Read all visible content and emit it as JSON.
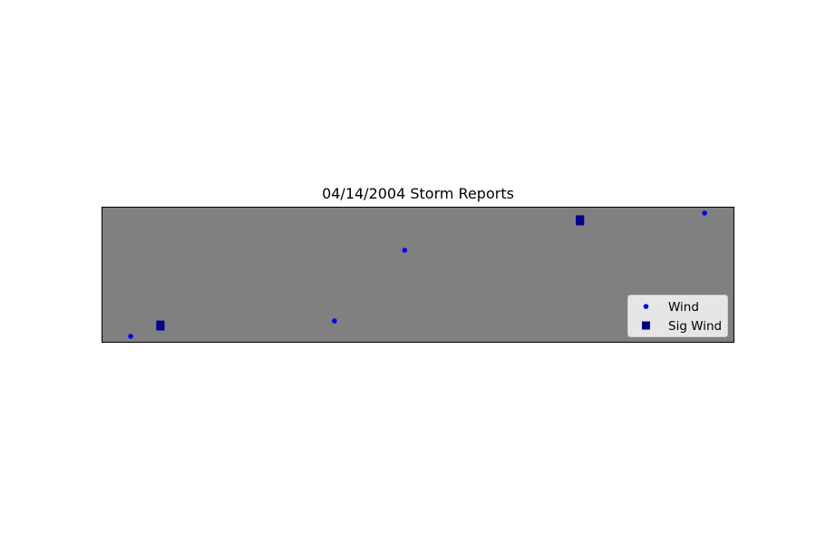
{
  "chart_data": {
    "type": "scatter",
    "title": "04/14/2004 Storm Reports",
    "xlabel": "",
    "ylabel": "",
    "xlim": [
      0,
      100
    ],
    "ylim": [
      0,
      100
    ],
    "grid": false,
    "axes_ticks": false,
    "background_color": "#808080",
    "legend_placement": "lower-right",
    "series": [
      {
        "name": "Wind",
        "marker": "circle",
        "color": "#0000ff",
        "points": [
          {
            "x": 4.6,
            "y": 4.7
          },
          {
            "x": 36.8,
            "y": 16.0
          },
          {
            "x": 47.9,
            "y": 68.0
          },
          {
            "x": 95.3,
            "y": 95.3
          }
        ]
      },
      {
        "name": "Sig Wind",
        "marker": "square",
        "color": "#00008b",
        "points": [
          {
            "x": 9.3,
            "y": 12.0
          },
          {
            "x": 9.3,
            "y": 13.3
          },
          {
            "x": 75.6,
            "y": 89.3
          },
          {
            "x": 75.6,
            "y": 90.7
          }
        ]
      }
    ]
  }
}
